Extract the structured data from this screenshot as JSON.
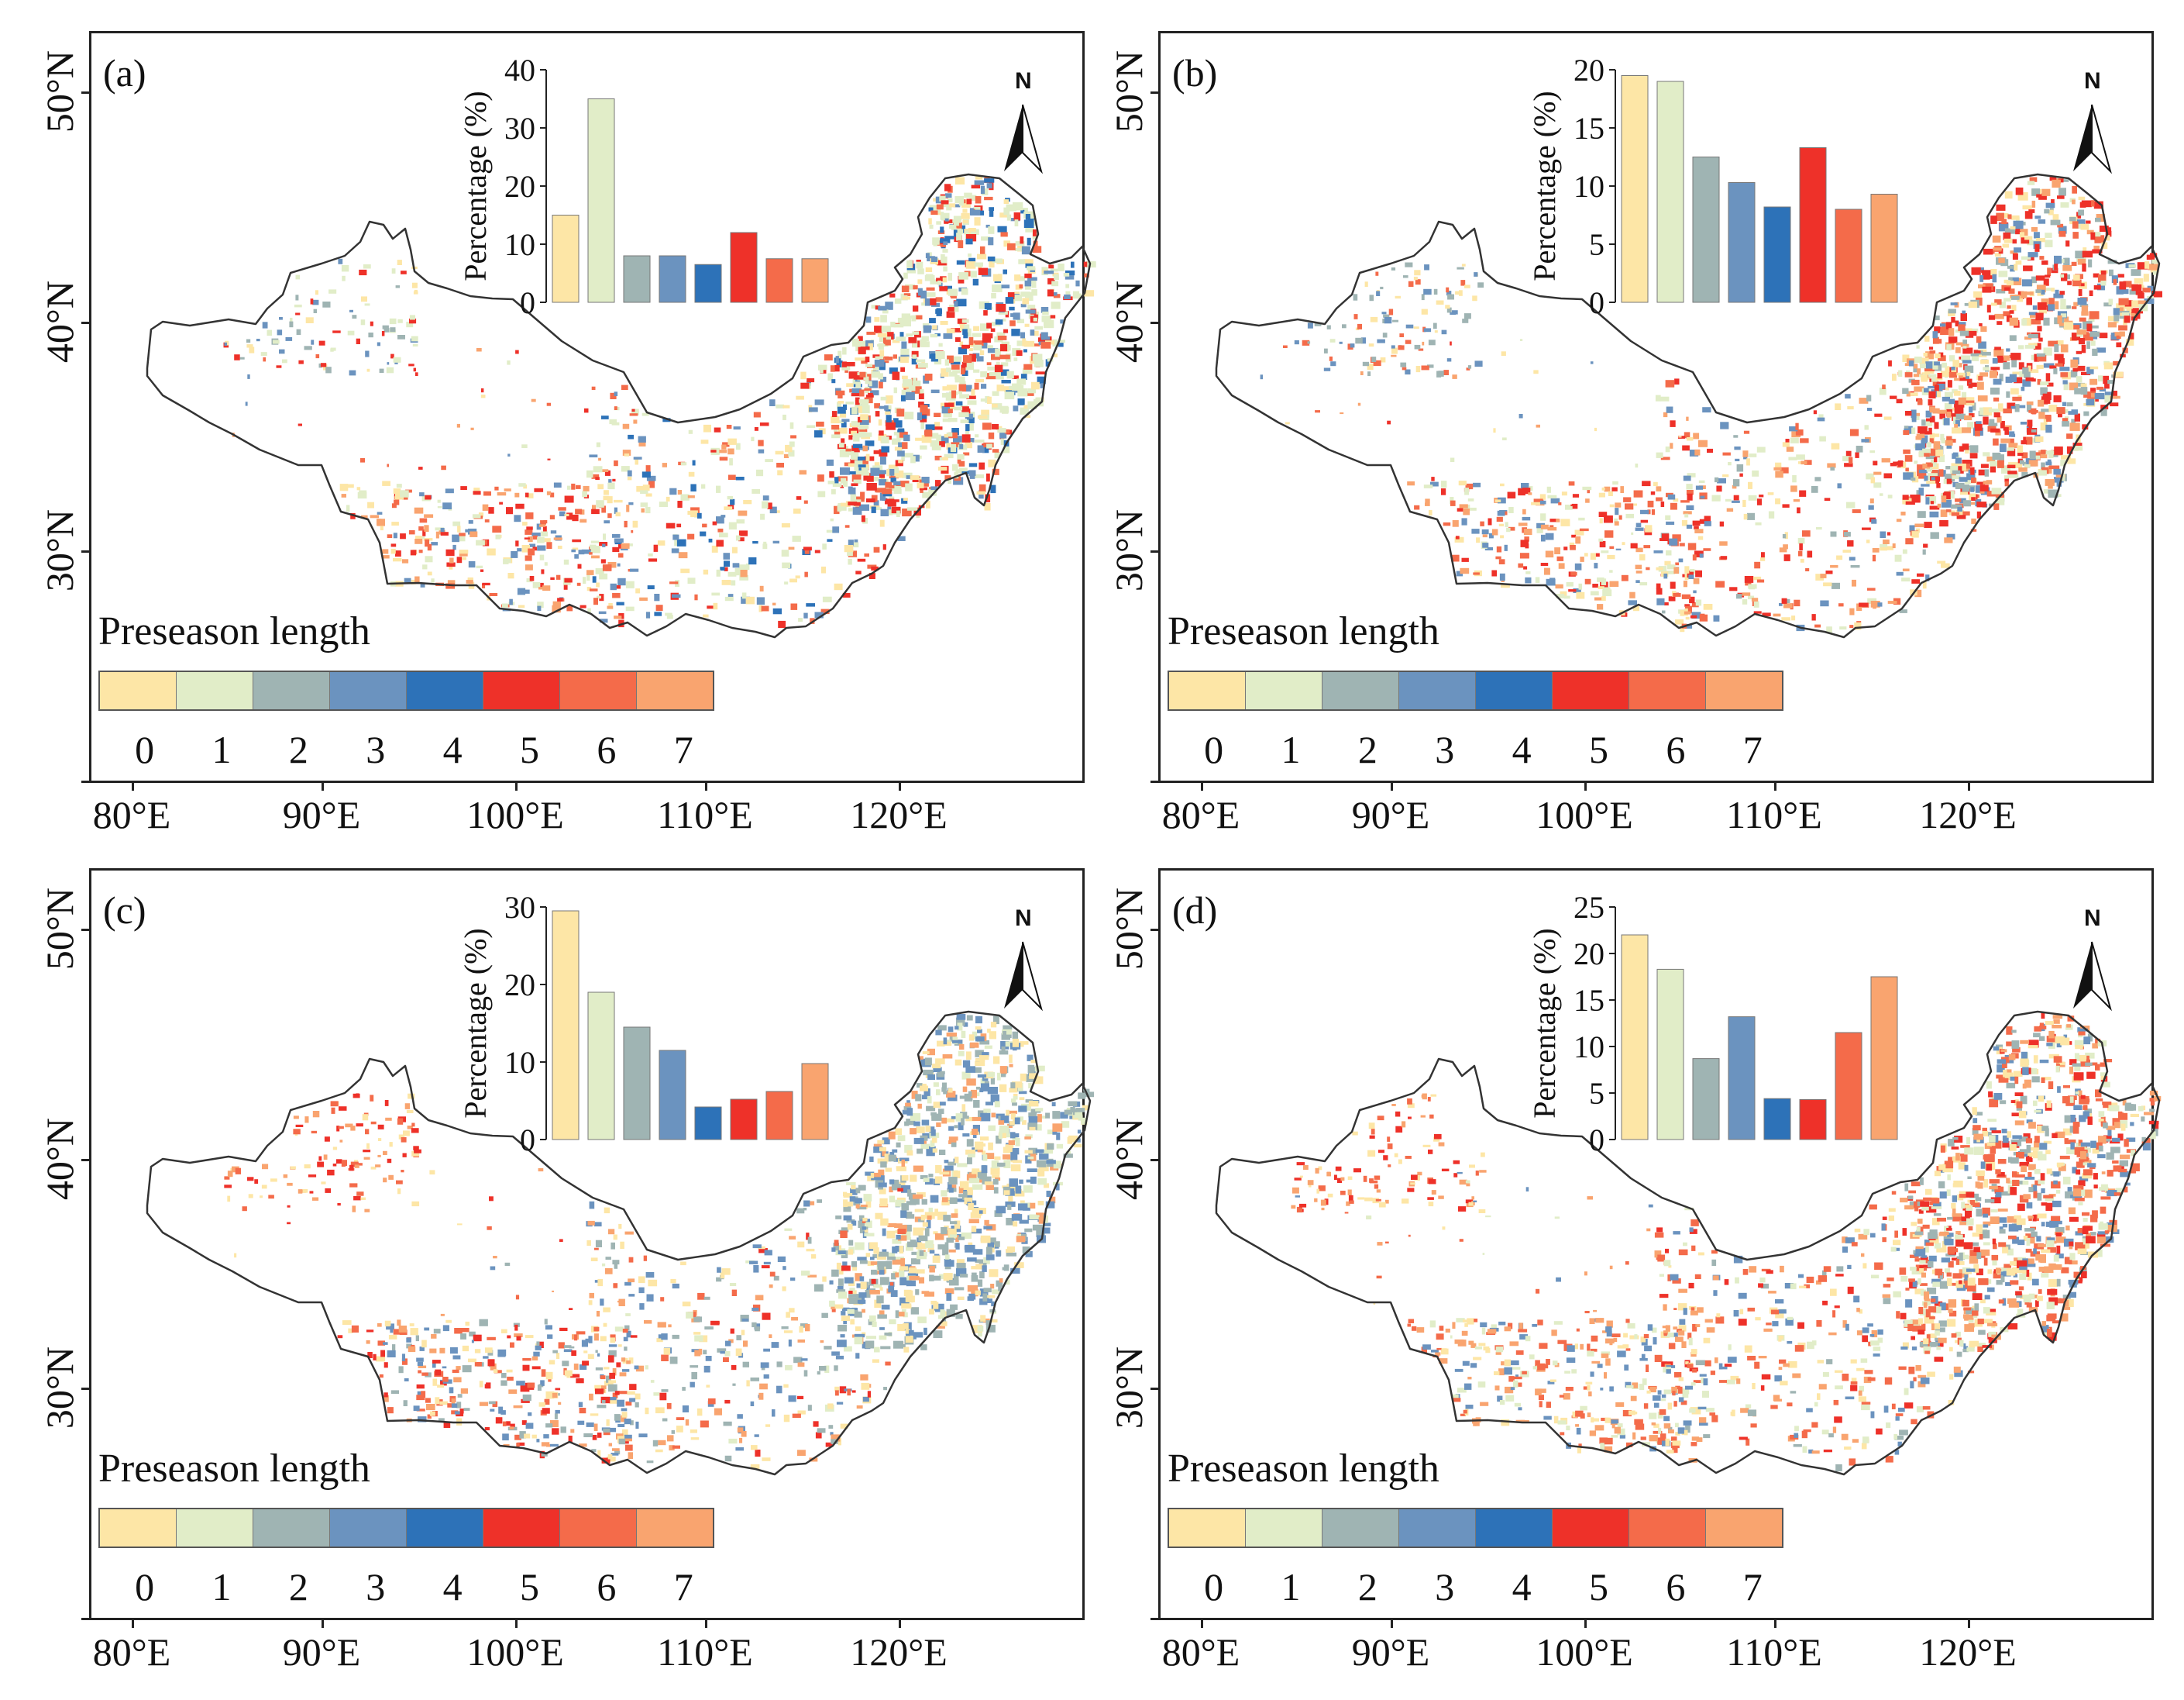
{
  "colors": {
    "classes": [
      "#fde6a6",
      "#e1edc8",
      "#9fb4b3",
      "#6b93bf",
      "#2d72b8",
      "#ee3129",
      "#f46b4a",
      "#f9a46f"
    ],
    "outline": "#333333",
    "frame": "#222222"
  },
  "common": {
    "legend_title": "Preseason length",
    "legend_values": [
      "0",
      "1",
      "2",
      "3",
      "4",
      "5",
      "6",
      "7"
    ],
    "lat_labels": [
      "50°N",
      "40°N",
      "30°N"
    ],
    "lon_labels": [
      "80°E",
      "90°E",
      "100°E",
      "110°E",
      "120°E"
    ],
    "north_label": "N",
    "inset_ylabel": "Percentage (%)"
  },
  "panels": [
    {
      "label": "(a)"
    },
    {
      "label": "(b)"
    },
    {
      "label": "(c)"
    },
    {
      "label": "(d)"
    }
  ],
  "chart_data": [
    {
      "type": "bar",
      "title": "(a)",
      "categories": [
        "0",
        "1",
        "2",
        "3",
        "4",
        "5",
        "6",
        "7"
      ],
      "values": [
        15,
        35,
        8,
        8,
        6.5,
        12,
        7.5,
        7.5
      ],
      "ylabel": "Percentage (%)",
      "ylim": [
        0,
        40
      ],
      "yticks": [
        "0",
        "10",
        "20",
        "30",
        "40"
      ]
    },
    {
      "type": "bar",
      "title": "(b)",
      "categories": [
        "0",
        "1",
        "2",
        "3",
        "4",
        "5",
        "6",
        "7"
      ],
      "values": [
        19.5,
        19,
        12.5,
        10.3,
        8.2,
        13.3,
        8,
        9.3
      ],
      "ylabel": "Percentage (%)",
      "ylim": [
        0,
        20
      ],
      "yticks": [
        "0",
        "5",
        "10",
        "15",
        "20"
      ]
    },
    {
      "type": "bar",
      "title": "(c)",
      "categories": [
        "0",
        "1",
        "2",
        "3",
        "4",
        "5",
        "6",
        "7"
      ],
      "values": [
        29.5,
        19,
        14.5,
        11.5,
        4.2,
        5.2,
        6.2,
        9.8
      ],
      "ylabel": "Percentage (%)",
      "ylim": [
        0,
        30
      ],
      "yticks": [
        "0",
        "10",
        "20",
        "30"
      ]
    },
    {
      "type": "bar",
      "title": "(d)",
      "categories": [
        "0",
        "1",
        "2",
        "3",
        "4",
        "5",
        "6",
        "7"
      ],
      "values": [
        22,
        18.3,
        8.7,
        13.2,
        4.4,
        4.3,
        11.5,
        17.5
      ],
      "ylabel": "Percentage (%)",
      "ylim": [
        0,
        25
      ],
      "yticks": [
        "0",
        "5",
        "10",
        "15",
        "20",
        "25"
      ]
    }
  ]
}
